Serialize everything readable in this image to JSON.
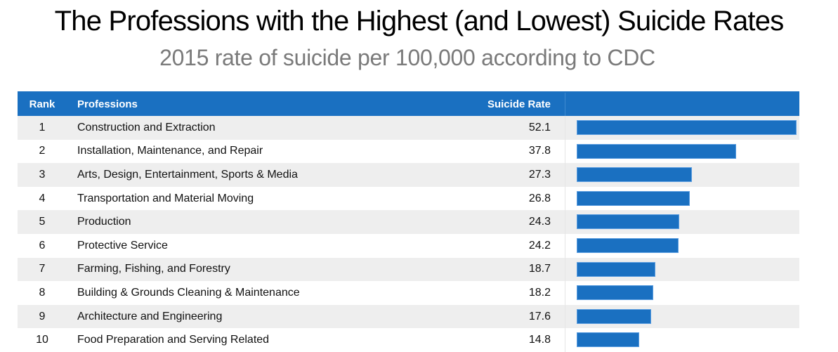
{
  "title": "The Professions with the Highest (and Lowest) Suicide Rates",
  "subtitle": "2015 rate of suicide per 100,000 according to CDC",
  "colors": {
    "header_bg": "#1a70c1",
    "bar": "#1a70c1",
    "row_alt": "#eeeeee"
  },
  "chart_data": {
    "type": "bar",
    "orientation": "horizontal",
    "title": "The Professions with the Highest (and Lowest) Suicide Rates",
    "subtitle": "2015 rate of suicide per 100,000 according to CDC",
    "columns": [
      "Rank",
      "Professions",
      "Suicide Rate"
    ],
    "rows": [
      {
        "rank": "1",
        "profession": "Construction and Extraction",
        "rate": "52.1",
        "value": 52.1
      },
      {
        "rank": "2",
        "profession": "Installation, Maintenance, and Repair",
        "rate": "37.8",
        "value": 37.8
      },
      {
        "rank": "3",
        "profession": "Arts, Design, Entertainment, Sports & Media",
        "rate": "27.3",
        "value": 27.3
      },
      {
        "rank": "4",
        "profession": "Transportation and Material Moving",
        "rate": "26.8",
        "value": 26.8
      },
      {
        "rank": "5",
        "profession": "Production",
        "rate": "24.3",
        "value": 24.3
      },
      {
        "rank": "6",
        "profession": "Protective Service",
        "rate": "24.2",
        "value": 24.2
      },
      {
        "rank": "7",
        "profession": "Farming, Fishing, and Forestry",
        "rate": "18.7",
        "value": 18.7
      },
      {
        "rank": "8",
        "profession": "Building & Grounds Cleaning & Maintenance",
        "rate": "18.2",
        "value": 18.2
      },
      {
        "rank": "9",
        "profession": "Architecture and Engineering",
        "rate": "17.6",
        "value": 17.6
      },
      {
        "rank": "10",
        "profession": "Food Preparation and Serving Related",
        "rate": "14.8",
        "value": 14.8
      }
    ],
    "xlim": [
      0,
      52.1
    ]
  }
}
